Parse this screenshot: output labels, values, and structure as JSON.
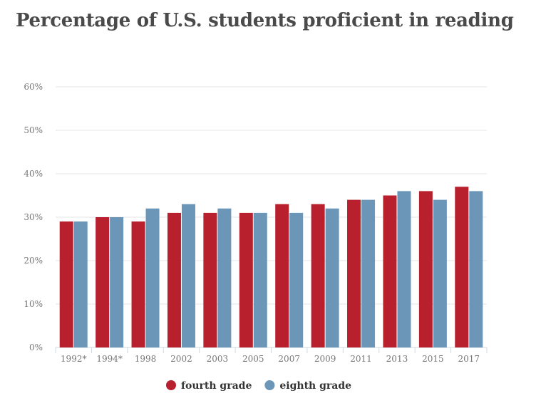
{
  "chart_data": {
    "type": "bar",
    "title": "Percentage of U.S. students proficient in reading",
    "xlabel": "",
    "ylabel": "",
    "ylim": [
      0,
      60
    ],
    "yticks": [
      "0%",
      "10%",
      "20%",
      "30%",
      "40%",
      "50%",
      "60%"
    ],
    "categories": [
      "1992*",
      "1994*",
      "1998",
      "2002",
      "2003",
      "2005",
      "2007",
      "2009",
      "2011",
      "2013",
      "2015",
      "2017"
    ],
    "series": [
      {
        "name": "fourth grade",
        "color": "#b8202e",
        "values": [
          29,
          30,
          29,
          31,
          31,
          31,
          33,
          33,
          34,
          35,
          36,
          37
        ]
      },
      {
        "name": "eighth grade",
        "color": "#6b96b8",
        "values": [
          29,
          30,
          32,
          33,
          32,
          31,
          31,
          32,
          34,
          36,
          34,
          36
        ]
      }
    ],
    "grid": true,
    "legend": "bottom-center"
  }
}
